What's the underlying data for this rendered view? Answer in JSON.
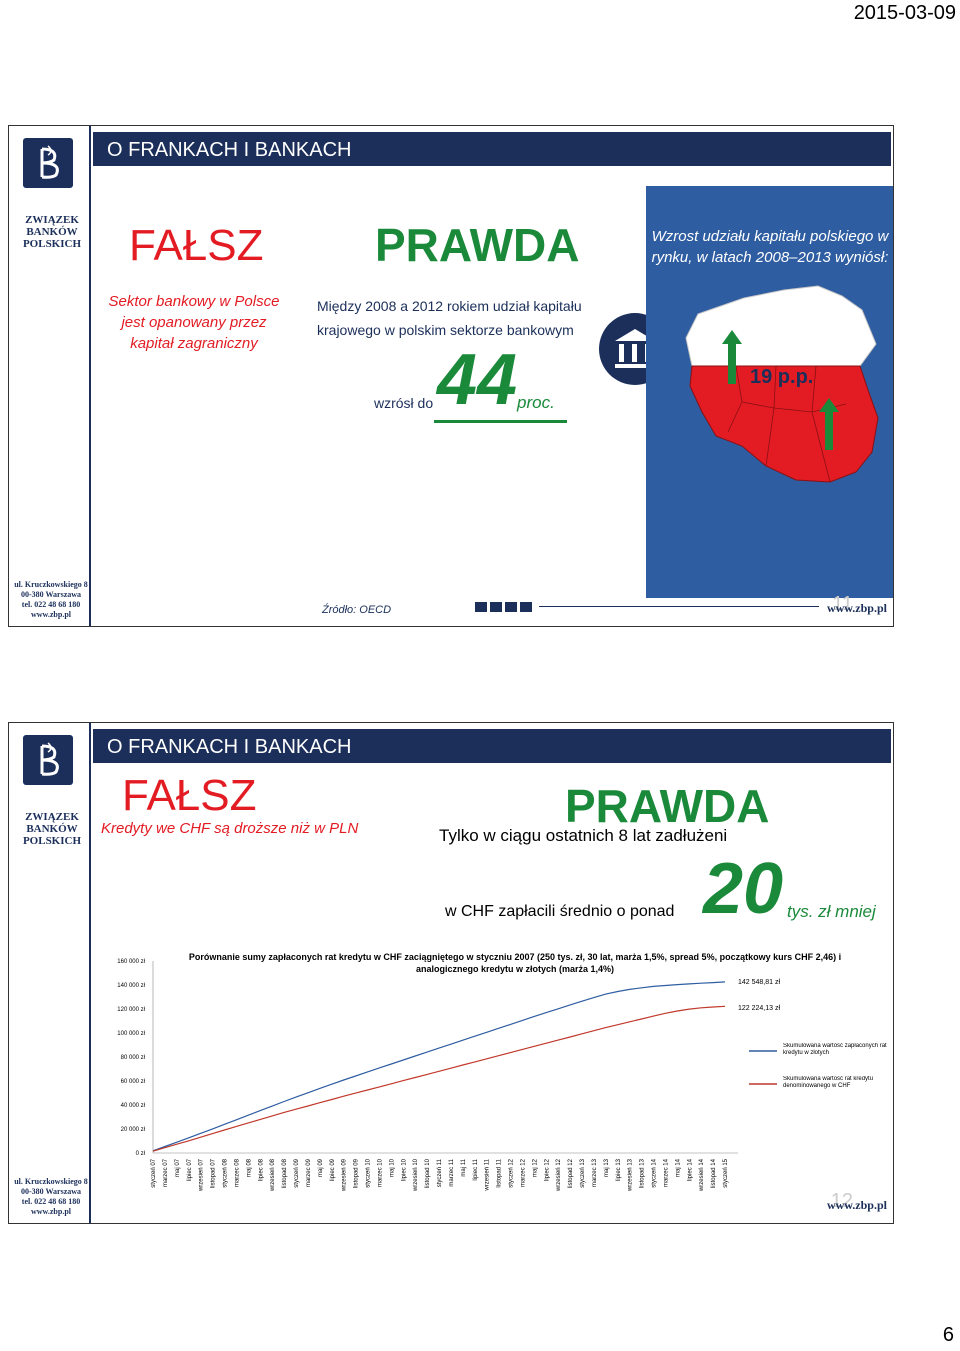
{
  "header": {
    "date": "2015-03-09"
  },
  "footer": {
    "page_number": "6"
  },
  "common": {
    "zbp_name": "ZWIĄZEK BANKÓW POLSKICH",
    "address": [
      "ul. Kruczkowskiego 8",
      "00-380 Warszawa",
      "tel. 022 48 68 180",
      "www.zbp.pl"
    ],
    "website": "www.zbp.pl"
  },
  "slide1": {
    "title": "O FRANKACH I BANKACH",
    "falsz": "FAŁSZ",
    "falsz_text": "Sektor bankowy w Polsce jest opanowany przez kapitał zagraniczny",
    "prawda": "PRAWDA",
    "prawda_text": "Między 2008 a 2012 rokiem udział kapitału krajowego w polskim sektorze bankowym",
    "wzrosl_label": "wzrósł do",
    "big_value": "44",
    "unit": "proc.",
    "panel_text": "Wzrost udziału kapitału polskiego w rynku, w latach 2008–2013 wyniósł:",
    "map_value": "19 p.p.",
    "source": "Źródło: OECD",
    "slide_number": "11"
  },
  "slide2": {
    "title": "O FRANKACH I BANKACH",
    "falsz": "FAŁSZ",
    "falsz_text": "Kredyty we CHF są droższe niż w PLN",
    "prawda": "PRAWDA",
    "line1": "Tylko w ciągu ostatnich 8 lat zadłużeni",
    "line2": "w CHF zapłacili średnio o ponad",
    "big_value": "20",
    "unit": "tys. zł mniej",
    "slide_number": "12"
  },
  "chart_data": {
    "type": "line",
    "title": "Porównanie sumy zapłaconych rat kredytu w CHF zaciągniętego w styczniu 2007 (250 tys. zł, 30 lat, marża 1,5%, spread 5%, początkowy kurs CHF 2,46) i analogicznego kredytu w złotych (marża 1,4%)",
    "ylim": [
      0,
      160000
    ],
    "y_ticks": [
      "0 zł",
      "20 000 zł",
      "40 000 zł",
      "60 000 zł",
      "80 000 zł",
      "100 000 zł",
      "120 000 zł",
      "140 000 zł",
      "160 000 zł"
    ],
    "x_labels": [
      "styczeń 07",
      "marzec 07",
      "maj 07",
      "lipiec 07",
      "wrzesień 07",
      "listopad 07",
      "styczeń 08",
      "marzec 08",
      "maj 08",
      "lipiec 08",
      "wrzesień 08",
      "listopad 08",
      "styczeń 09",
      "marzec 09",
      "maj 09",
      "lipiec 09",
      "wrzesień 09",
      "listopad 09",
      "styczeń 10",
      "marzec 10",
      "maj 10",
      "lipiec 10",
      "wrzesień 10",
      "listopad 10",
      "styczeń 11",
      "marzec 11",
      "maj 11",
      "lipiec 11",
      "wrzesień 11",
      "listopad 11",
      "styczeń 12",
      "marzec 12",
      "maj 12",
      "lipiec 12",
      "wrzesień 12",
      "listopad 12",
      "styczeń 13",
      "marzec 13",
      "maj 13",
      "lipiec 13",
      "wrzesień 13",
      "listopad 13",
      "styczeń 14",
      "marzec 14",
      "maj 14",
      "lipiec 14",
      "wrzesień 14",
      "listopad 14",
      "styczeń 15"
    ],
    "series": [
      {
        "name": "Skumulowana wartość zapłaconych rat kredytu w złotych",
        "color": "#2e5da1",
        "values": [
          1800,
          5400,
          9000,
          12700,
          16400,
          20100,
          23900,
          27700,
          31500,
          35300,
          39100,
          42900,
          46600,
          50200,
          53800,
          57300,
          60800,
          64200,
          67600,
          70900,
          74200,
          77500,
          80800,
          84100,
          87400,
          90700,
          94000,
          97300,
          100600,
          103900,
          107200,
          110500,
          113800,
          117000,
          120200,
          123400,
          126500,
          129500,
          132400,
          134600,
          136300,
          137700,
          138800,
          139600,
          140300,
          140900,
          141500,
          142000,
          142549
        ]
      },
      {
        "name": "Skumulowana wartość rat kredytu denominowanego w CHF",
        "color": "#c0392b",
        "values": [
          1500,
          4400,
          7300,
          10200,
          13200,
          16200,
          19200,
          22200,
          25100,
          28000,
          30900,
          33800,
          36500,
          39200,
          41900,
          44600,
          47300,
          49900,
          52500,
          55100,
          57700,
          60300,
          62900,
          65500,
          68100,
          70700,
          73300,
          75900,
          78500,
          81100,
          83700,
          86300,
          88900,
          91500,
          94100,
          96700,
          99300,
          101900,
          104500,
          106900,
          109300,
          111700,
          114100,
          116400,
          118300,
          119900,
          121000,
          121700,
          122224
        ]
      }
    ],
    "end_labels": [
      "142 548,81 zł",
      "122 224,13 zł"
    ],
    "legend_position": "right"
  }
}
